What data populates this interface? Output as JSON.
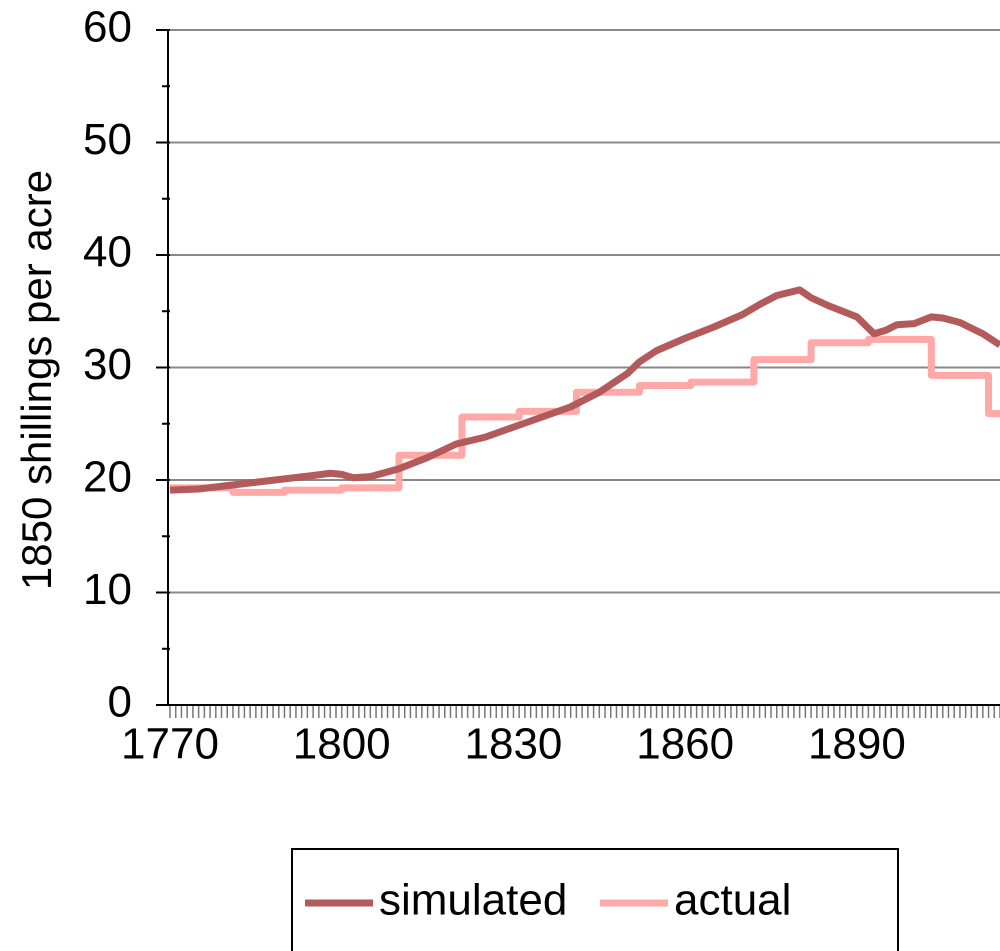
{
  "chart_data": {
    "type": "line",
    "ylabel": "1850 shillings per acre",
    "xlim": [
      1770,
      1915
    ],
    "xticks": [
      1770,
      1800,
      1830,
      1860,
      1890
    ],
    "xminor": 1,
    "ylim": [
      0,
      60
    ],
    "yticks": [
      0,
      10,
      20,
      30,
      40,
      50,
      60
    ],
    "yminor": 5,
    "grid": true,
    "legend": "bottom",
    "series": [
      {
        "name": "simulated",
        "color": "#b35a5a",
        "x": [
          1770,
          1775,
          1780,
          1785,
          1790,
          1795,
          1798,
          1800,
          1802,
          1805,
          1810,
          1815,
          1820,
          1825,
          1830,
          1835,
          1840,
          1845,
          1850,
          1852,
          1855,
          1860,
          1865,
          1870,
          1873,
          1876,
          1880,
          1882,
          1885,
          1890,
          1893,
          1895,
          1897,
          1900,
          1903,
          1905,
          1908,
          1912,
          1915
        ],
        "values": [
          19.1,
          19.2,
          19.5,
          19.8,
          20.1,
          20.4,
          20.6,
          20.5,
          20.2,
          20.3,
          21.0,
          22.0,
          23.2,
          23.8,
          24.7,
          25.6,
          26.5,
          27.8,
          29.5,
          30.5,
          31.5,
          32.6,
          33.6,
          34.7,
          35.6,
          36.4,
          36.9,
          36.2,
          35.5,
          34.5,
          33.0,
          33.3,
          33.8,
          33.9,
          34.5,
          34.4,
          34.0,
          33.0,
          32.0
        ]
      },
      {
        "name": "actual",
        "color": "#ffa8a8",
        "x": [
          1770,
          1781,
          1781,
          1790,
          1790,
          1800,
          1800,
          1810,
          1810,
          1821,
          1821,
          1831,
          1831,
          1841,
          1841,
          1852,
          1852,
          1861,
          1861,
          1872,
          1872,
          1882,
          1882,
          1892,
          1892,
          1903,
          1903,
          1913,
          1913,
          1915
        ],
        "values": [
          19.3,
          19.3,
          18.9,
          18.9,
          19.1,
          19.1,
          19.3,
          19.3,
          22.2,
          22.2,
          25.6,
          25.6,
          26.1,
          26.1,
          27.8,
          27.8,
          28.4,
          28.4,
          28.7,
          28.7,
          30.7,
          30.7,
          32.2,
          32.2,
          32.5,
          32.5,
          29.3,
          29.3,
          25.9,
          25.9
        ]
      }
    ]
  }
}
